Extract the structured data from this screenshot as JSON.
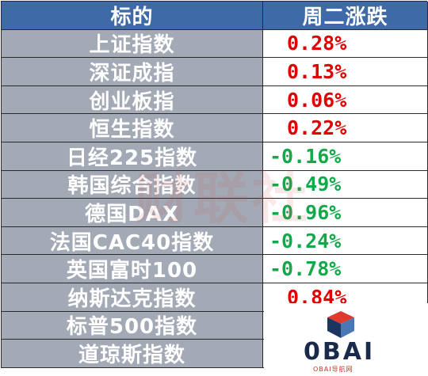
{
  "table": {
    "headers": [
      "标的",
      "周二涨跌"
    ],
    "rows": [
      {
        "name": "上证指数",
        "change": "0.28%",
        "dir": "up"
      },
      {
        "name": "深证成指",
        "change": "0.13%",
        "dir": "up"
      },
      {
        "name": "创业板指",
        "change": "0.06%",
        "dir": "up"
      },
      {
        "name": "恒生指数",
        "change": "0.22%",
        "dir": "up"
      },
      {
        "name": "日经225指数",
        "change": "-0.16%",
        "dir": "down"
      },
      {
        "name": "韩国综合指数",
        "change": "-0.49%",
        "dir": "down"
      },
      {
        "name": "德国DAX",
        "change": "-0.96%",
        "dir": "down"
      },
      {
        "name": "法国CAC40指数",
        "change": "-0.24%",
        "dir": "down"
      },
      {
        "name": "英国富时100",
        "change": "-0.78%",
        "dir": "down"
      },
      {
        "name": "纳斯达克指数",
        "change": "0.84%",
        "dir": "up"
      },
      {
        "name": "标普500指数",
        "change": "",
        "dir": "up"
      },
      {
        "name": "道琼斯指数",
        "change": "",
        "dir": "up"
      }
    ]
  },
  "watermark": "财联社",
  "logo": {
    "text": "0BAI",
    "subtitle": "OBAI导航网"
  },
  "colors": {
    "header_bg": "#3e6aa8",
    "name_bg": "#a3aab6",
    "up": "#e00000",
    "down": "#13a84a"
  }
}
